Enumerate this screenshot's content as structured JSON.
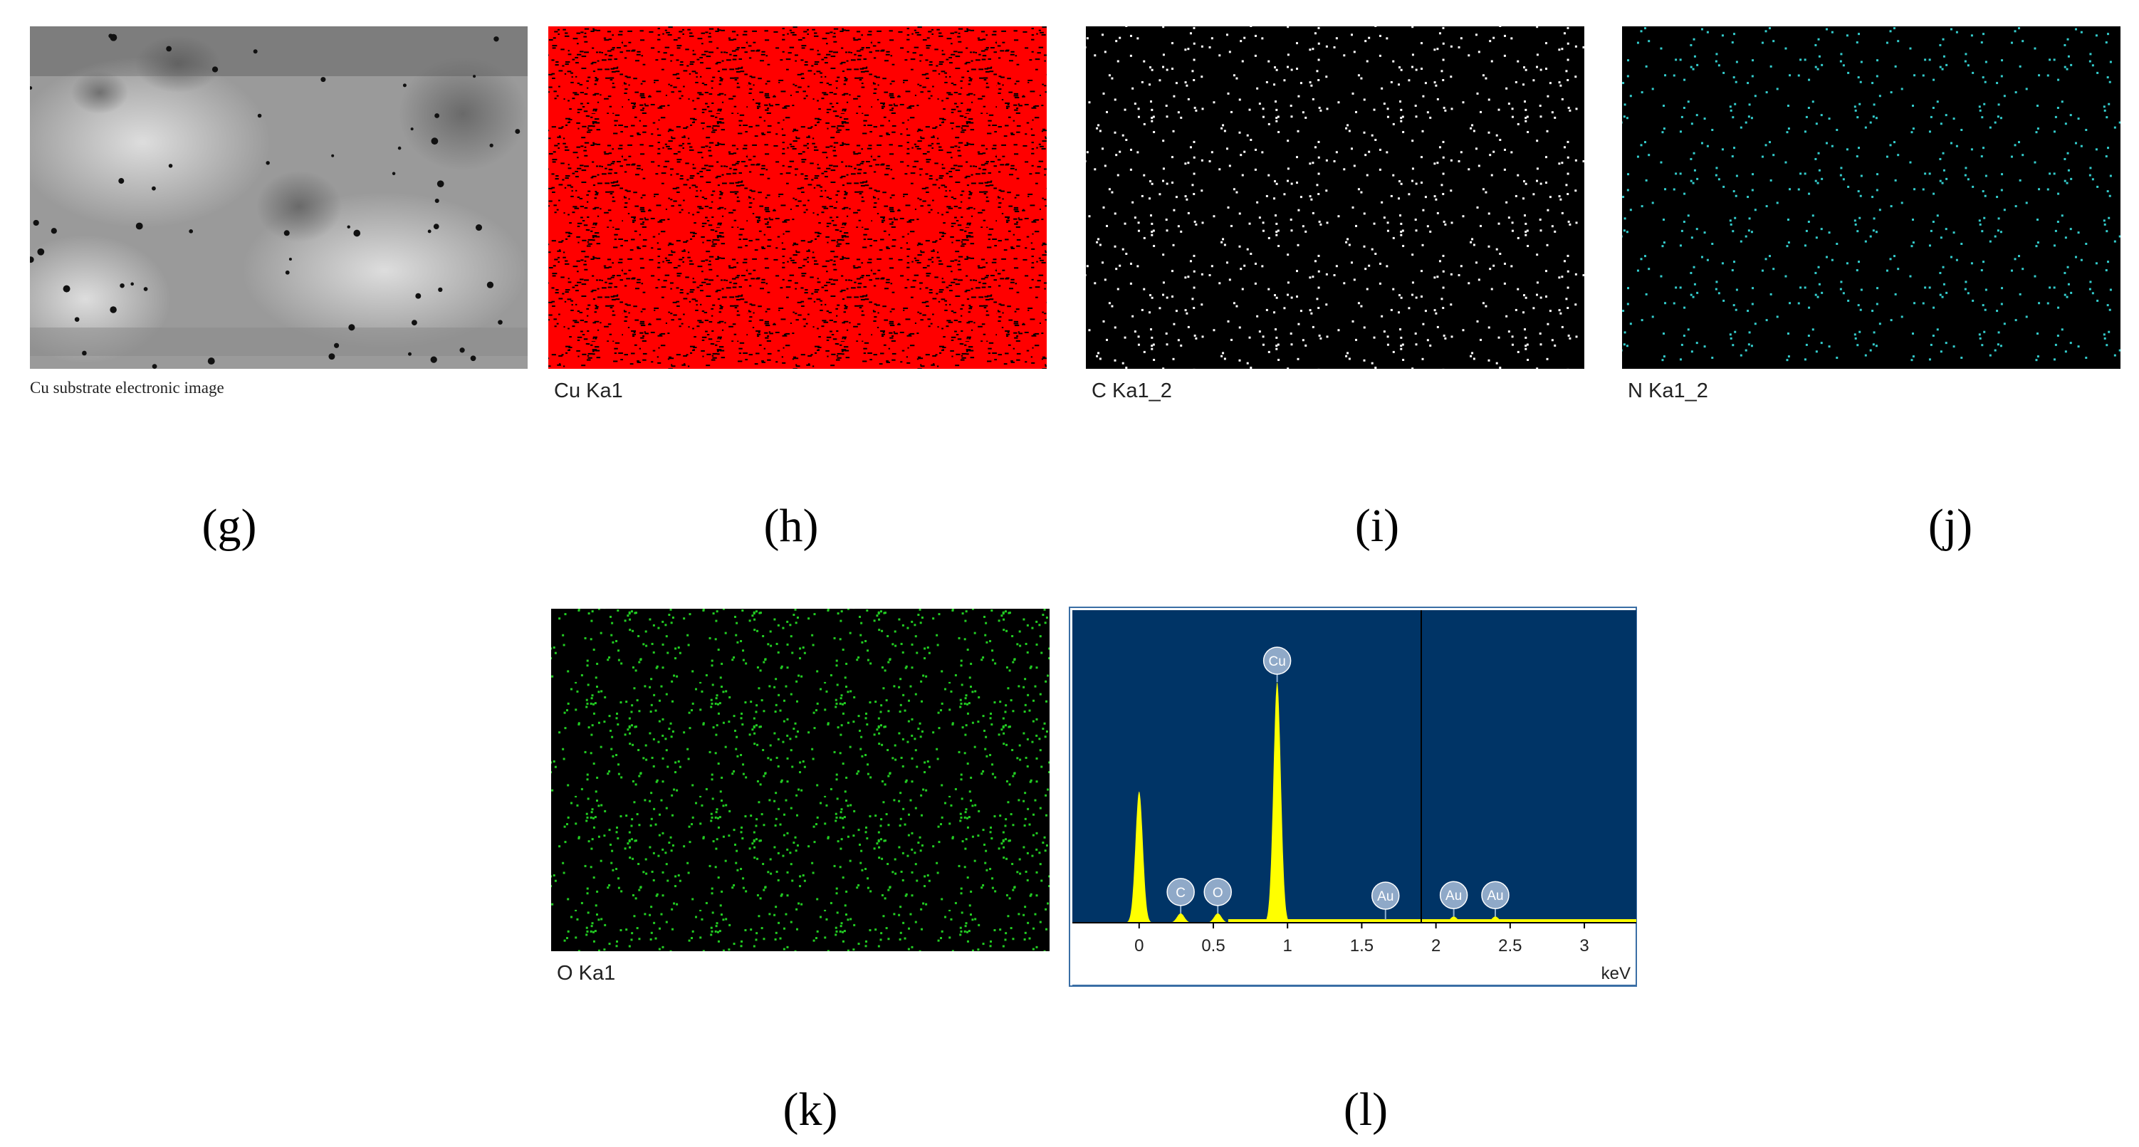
{
  "panels": [
    {
      "letter": "(g)",
      "caption": "Cu substrate electronic image"
    },
    {
      "letter": "(h)",
      "caption": "Cu Ka1",
      "color": "#ff0000"
    },
    {
      "letter": "(i)",
      "caption": "C Ka1_2",
      "color": "#ffffff"
    },
    {
      "letter": "(j)",
      "caption": "N Ka1_2",
      "color": "#33cccc"
    },
    {
      "letter": "(k)",
      "caption": "O Ka1",
      "color": "#22cc22"
    },
    {
      "letter": "(l)"
    }
  ],
  "spectrum": {
    "type": "line",
    "unit": "keV",
    "xlim": [
      -0.45,
      3.35
    ],
    "ylim": [
      0,
      100
    ],
    "xticks": [
      0,
      0.5,
      1,
      1.5,
      2,
      2.5,
      3
    ],
    "peaks": [
      {
        "x": 0,
        "height": 42
      },
      {
        "x": 0.28,
        "height": 3,
        "label": "C"
      },
      {
        "x": 0.53,
        "height": 3,
        "label": "O"
      },
      {
        "x": 0.93,
        "height": 77,
        "label": "Cu"
      },
      {
        "x": 1.66,
        "height": 1,
        "label": "Au"
      },
      {
        "x": 2.12,
        "height": 2,
        "label": "Au"
      },
      {
        "x": 2.4,
        "height": 2,
        "label": "Au"
      }
    ]
  }
}
